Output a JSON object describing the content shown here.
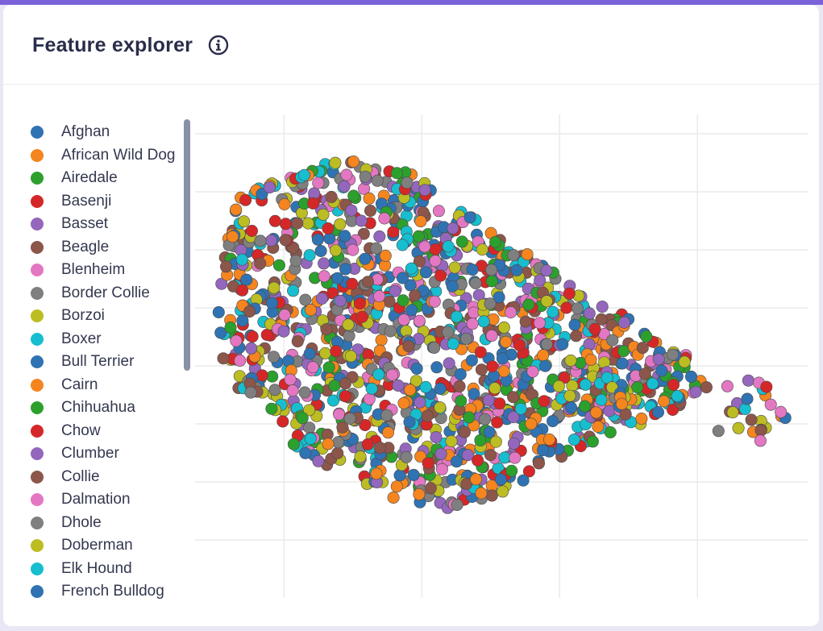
{
  "header": {
    "title": "Feature explorer",
    "info_icon": "info-circle-icon"
  },
  "colors": {
    "accent_bar": "#7b62db",
    "card_bg": "#ffffff",
    "title": "#2a2d4a",
    "grid": "#eaeaea"
  },
  "legend": {
    "items": [
      {
        "label": "Afghan",
        "color": "#2f73b3"
      },
      {
        "label": "African Wild Dog",
        "color": "#f5851f"
      },
      {
        "label": "Airedale",
        "color": "#2ca02c"
      },
      {
        "label": "Basenji",
        "color": "#d62728"
      },
      {
        "label": "Basset",
        "color": "#9467bd"
      },
      {
        "label": "Beagle",
        "color": "#8c564b"
      },
      {
        "label": "Blenheim",
        "color": "#e377c2"
      },
      {
        "label": "Border Collie",
        "color": "#7f7f7f"
      },
      {
        "label": "Borzoi",
        "color": "#bcbd22"
      },
      {
        "label": "Boxer",
        "color": "#17becf"
      },
      {
        "label": "Bull Terrier",
        "color": "#2f73b3"
      },
      {
        "label": "Cairn",
        "color": "#f5851f"
      },
      {
        "label": "Chihuahua",
        "color": "#2ca02c"
      },
      {
        "label": "Chow",
        "color": "#d62728"
      },
      {
        "label": "Clumber",
        "color": "#9467bd"
      },
      {
        "label": "Collie",
        "color": "#8c564b"
      },
      {
        "label": "Dalmation",
        "color": "#e377c2"
      },
      {
        "label": "Dhole",
        "color": "#7f7f7f"
      },
      {
        "label": "Doberman",
        "color": "#bcbd22"
      },
      {
        "label": "Elk Hound",
        "color": "#17becf"
      },
      {
        "label": "French Bulldog",
        "color": "#2f73b3"
      }
    ]
  },
  "chart_data": {
    "type": "scatter",
    "title": "",
    "xlabel": "",
    "ylabel": "",
    "grid": true,
    "legend_position": "left",
    "series_names_from_legend": true,
    "xlim": [
      0,
      100
    ],
    "ylim": [
      0,
      100
    ],
    "x_gridlines": [
      14.5,
      37,
      59.5,
      82
    ],
    "y_gridlines": [
      12,
      24,
      36,
      48,
      60,
      72,
      84,
      96
    ],
    "cluster_main_polygon": [
      [
        3,
        61
      ],
      [
        7,
        83
      ],
      [
        13,
        86
      ],
      [
        24,
        91
      ],
      [
        36,
        88
      ],
      [
        46,
        78
      ],
      [
        57,
        69
      ],
      [
        66,
        62
      ],
      [
        76,
        53
      ],
      [
        82,
        49
      ],
      [
        84,
        43
      ],
      [
        76,
        37
      ],
      [
        68,
        34
      ],
      [
        61,
        30
      ],
      [
        57,
        27
      ],
      [
        52,
        22
      ],
      [
        45,
        20
      ],
      [
        40,
        18
      ],
      [
        37,
        17
      ],
      [
        33,
        20
      ],
      [
        25,
        25
      ],
      [
        17,
        30
      ],
      [
        13,
        37
      ],
      [
        7,
        42
      ],
      [
        4,
        50
      ]
    ],
    "cluster_tail_polygon": [
      [
        59,
        49
      ],
      [
        67,
        50
      ],
      [
        73,
        48
      ],
      [
        80,
        46
      ],
      [
        88,
        45
      ],
      [
        92,
        45
      ],
      [
        97,
        40
      ],
      [
        97,
        36
      ],
      [
        92,
        32
      ],
      [
        86,
        34
      ],
      [
        80,
        36
      ],
      [
        72,
        37
      ],
      [
        63,
        38
      ],
      [
        57,
        40
      ]
    ],
    "point_count_main": 1350,
    "point_count_tail": 80
  }
}
